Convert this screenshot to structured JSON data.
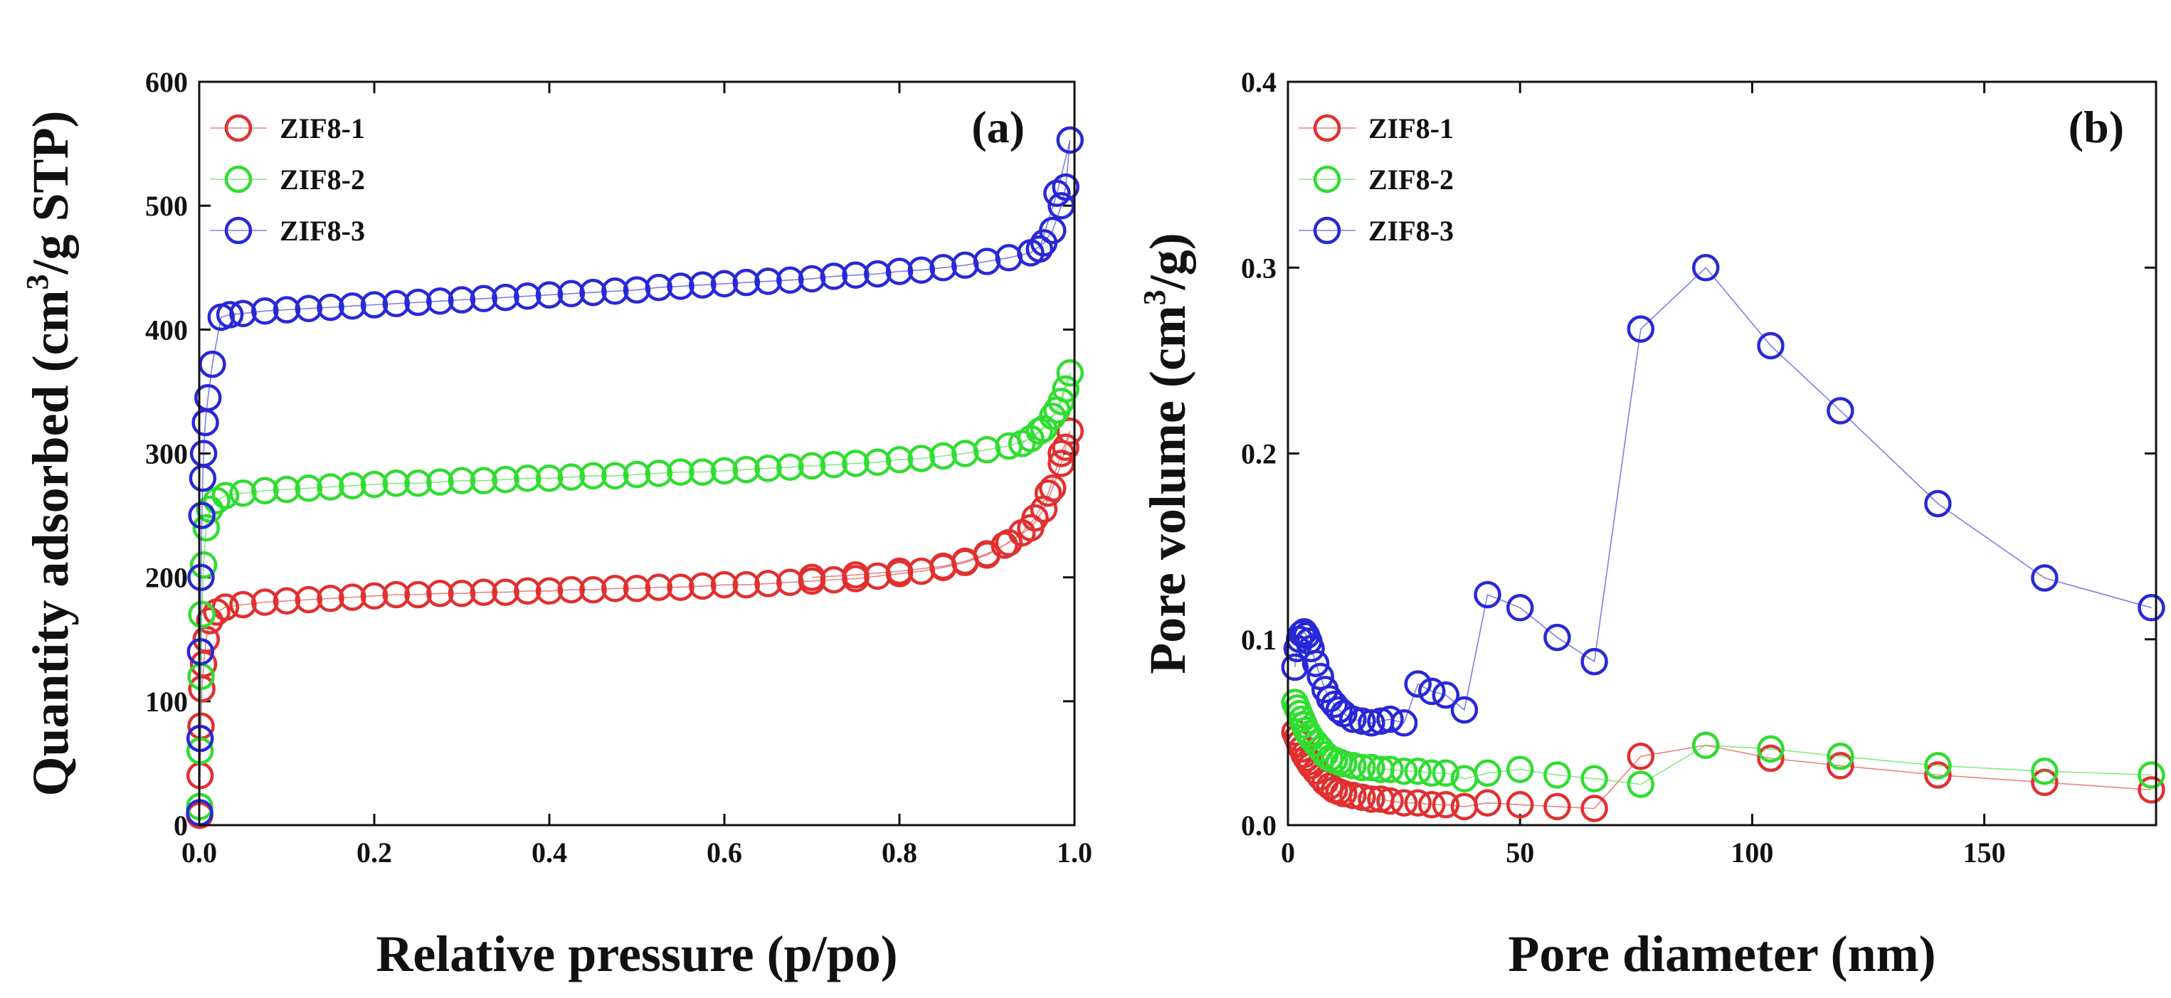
{
  "figure": {
    "panels": [
      "a",
      "b"
    ]
  },
  "chart_data": [
    {
      "id": "a",
      "type": "scatter",
      "connected": true,
      "marker": "open-circle",
      "panel_label": "(a)",
      "title": "",
      "xlabel": "Relative pressure (p/po)",
      "ylabel_main": "Quantity adsorbed (cm",
      "ylabel_sup": "3",
      "ylabel_tail": "/g STP)",
      "xlim": [
        0,
        1
      ],
      "ylim": [
        0,
        600
      ],
      "xticks": [
        0,
        0.2,
        0.4,
        0.6,
        0.8,
        1
      ],
      "xtick_labels": [
        "0.0",
        "0.2",
        "0.4",
        "0.6",
        "0.8",
        "1.0"
      ],
      "yticks": [
        0,
        100,
        200,
        300,
        400,
        500,
        600
      ],
      "ytick_labels": [
        "0",
        "100",
        "200",
        "300",
        "400",
        "500",
        "600"
      ],
      "legend_position": "top-left",
      "series": [
        {
          "name": "ZIF8-1",
          "color": "#e03030",
          "x": [
            0.0005,
            0.001,
            0.002,
            0.003,
            0.005,
            0.008,
            0.012,
            0.02,
            0.03,
            0.05,
            0.075,
            0.1,
            0.125,
            0.15,
            0.175,
            0.2,
            0.225,
            0.25,
            0.275,
            0.3,
            0.325,
            0.35,
            0.375,
            0.4,
            0.425,
            0.45,
            0.475,
            0.5,
            0.525,
            0.55,
            0.575,
            0.6,
            0.625,
            0.65,
            0.675,
            0.7,
            0.725,
            0.75,
            0.775,
            0.8,
            0.825,
            0.85,
            0.875,
            0.9,
            0.925,
            0.95,
            0.965,
            0.975,
            0.985,
            0.99,
            0.995,
            0.985,
            0.97,
            0.955,
            0.94,
            0.92,
            0.9,
            0.875,
            0.85,
            0.8,
            0.75,
            0.7
          ],
          "y": [
            8,
            40,
            80,
            110,
            130,
            150,
            165,
            172,
            176,
            178,
            180,
            181,
            182,
            183,
            184,
            185,
            186,
            186,
            187,
            187,
            188,
            188,
            189,
            189,
            190,
            190,
            191,
            191,
            192,
            192,
            193,
            194,
            194,
            195,
            196,
            197,
            198,
            199,
            201,
            203,
            205,
            208,
            212,
            218,
            228,
            240,
            255,
            272,
            292,
            305,
            318,
            300,
            268,
            248,
            236,
            226,
            219,
            213,
            209,
            205,
            202,
            200
          ]
        },
        {
          "name": "ZIF8-2",
          "color": "#30dd30",
          "x": [
            0.0005,
            0.001,
            0.002,
            0.003,
            0.005,
            0.008,
            0.012,
            0.02,
            0.03,
            0.05,
            0.075,
            0.1,
            0.125,
            0.15,
            0.175,
            0.2,
            0.225,
            0.25,
            0.275,
            0.3,
            0.325,
            0.35,
            0.375,
            0.4,
            0.425,
            0.45,
            0.475,
            0.5,
            0.525,
            0.55,
            0.575,
            0.6,
            0.625,
            0.65,
            0.675,
            0.7,
            0.725,
            0.75,
            0.775,
            0.8,
            0.825,
            0.85,
            0.875,
            0.9,
            0.925,
            0.95,
            0.965,
            0.975,
            0.985,
            0.99,
            0.995,
            0.98,
            0.96,
            0.94
          ],
          "y": [
            15,
            60,
            120,
            170,
            210,
            240,
            255,
            262,
            266,
            268,
            270,
            271,
            272,
            273,
            274,
            275,
            276,
            276,
            277,
            278,
            278,
            279,
            280,
            280,
            281,
            282,
            282,
            283,
            284,
            285,
            285,
            286,
            287,
            288,
            289,
            290,
            291,
            292,
            293,
            295,
            296,
            298,
            300,
            303,
            306,
            312,
            320,
            330,
            342,
            352,
            365,
            335,
            318,
            308
          ]
        },
        {
          "name": "ZIF8-3",
          "color": "#2828d8",
          "x": [
            0.0005,
            0.001,
            0.0015,
            0.002,
            0.003,
            0.004,
            0.005,
            0.007,
            0.01,
            0.015,
            0.025,
            0.035,
            0.05,
            0.075,
            0.1,
            0.125,
            0.15,
            0.175,
            0.2,
            0.225,
            0.25,
            0.275,
            0.3,
            0.325,
            0.35,
            0.375,
            0.4,
            0.425,
            0.45,
            0.475,
            0.5,
            0.525,
            0.55,
            0.575,
            0.6,
            0.625,
            0.65,
            0.675,
            0.7,
            0.725,
            0.75,
            0.775,
            0.8,
            0.825,
            0.85,
            0.875,
            0.9,
            0.925,
            0.95,
            0.965,
            0.975,
            0.985,
            0.99,
            0.995,
            0.98,
            0.96
          ],
          "y": [
            10,
            70,
            140,
            200,
            250,
            280,
            300,
            325,
            345,
            372,
            410,
            412,
            413,
            415,
            416,
            417,
            418,
            419,
            420,
            421,
            422,
            423,
            424,
            425,
            426,
            427,
            428,
            429,
            430,
            431,
            432,
            434,
            435,
            436,
            437,
            438,
            439,
            440,
            441,
            443,
            444,
            445,
            447,
            448,
            450,
            452,
            455,
            458,
            462,
            470,
            480,
            500,
            515,
            553,
            510,
            465
          ]
        }
      ]
    },
    {
      "id": "b",
      "type": "line",
      "marker": "open-circle",
      "panel_label": "(b)",
      "title": "",
      "xlabel": "Pore diameter (nm)",
      "ylabel_main": "Pore volume (cm",
      "ylabel_sup": "3",
      "ylabel_tail": "/g)",
      "xlim": [
        0,
        187
      ],
      "ylim": [
        0,
        0.4
      ],
      "xticks": [
        0,
        50,
        100,
        150
      ],
      "xtick_labels": [
        "0",
        "50",
        "100",
        "150"
      ],
      "yticks": [
        0,
        0.1,
        0.2,
        0.3,
        0.4
      ],
      "ytick_labels": [
        "0.0",
        "0.1",
        "0.2",
        "0.3",
        "0.4"
      ],
      "legend_position": "top-left",
      "series": [
        {
          "name": "ZIF8-1",
          "color": "#e03030",
          "x": [
            1.5,
            2,
            2.5,
            3,
            3.5,
            4,
            4.5,
            5,
            6,
            7,
            8,
            9,
            10,
            11,
            12,
            14,
            16,
            18,
            20,
            22,
            25,
            28,
            31,
            34,
            38,
            43,
            50,
            58,
            66,
            76,
            90,
            104,
            119,
            140,
            163,
            186
          ],
          "y": [
            0.05,
            0.047,
            0.044,
            0.041,
            0.038,
            0.036,
            0.034,
            0.032,
            0.029,
            0.026,
            0.023,
            0.021,
            0.019,
            0.018,
            0.017,
            0.016,
            0.015,
            0.014,
            0.014,
            0.013,
            0.012,
            0.012,
            0.011,
            0.011,
            0.01,
            0.012,
            0.011,
            0.01,
            0.009,
            0.037,
            0.043,
            0.036,
            0.032,
            0.027,
            0.023,
            0.019
          ]
        },
        {
          "name": "ZIF8-2",
          "color": "#30dd30",
          "x": [
            1.5,
            2,
            2.5,
            3,
            3.5,
            4,
            4.5,
            5,
            6,
            7,
            8,
            9,
            10,
            11,
            12,
            14,
            16,
            18,
            20,
            22,
            25,
            28,
            31,
            34,
            38,
            43,
            50,
            58,
            66,
            76,
            90,
            104,
            119,
            140,
            163,
            186
          ],
          "y": [
            0.066,
            0.063,
            0.06,
            0.057,
            0.054,
            0.051,
            0.049,
            0.047,
            0.044,
            0.041,
            0.038,
            0.036,
            0.035,
            0.034,
            0.033,
            0.032,
            0.031,
            0.031,
            0.03,
            0.03,
            0.029,
            0.029,
            0.028,
            0.028,
            0.025,
            0.028,
            0.03,
            0.027,
            0.025,
            0.022,
            0.043,
            0.041,
            0.037,
            0.032,
            0.029,
            0.027
          ]
        },
        {
          "name": "ZIF8-3",
          "color": "#2828d8",
          "x": [
            1.5,
            2,
            2.5,
            3,
            3.5,
            4,
            4.5,
            5,
            6,
            7,
            8,
            9,
            10,
            11,
            12,
            14,
            16,
            18,
            20,
            22,
            25,
            28,
            31,
            34,
            38,
            43,
            50,
            58,
            66,
            76,
            90,
            104,
            119,
            140,
            163,
            186
          ],
          "y": [
            0.085,
            0.095,
            0.1,
            0.103,
            0.104,
            0.102,
            0.099,
            0.095,
            0.087,
            0.08,
            0.073,
            0.068,
            0.065,
            0.062,
            0.06,
            0.057,
            0.056,
            0.055,
            0.056,
            0.057,
            0.055,
            0.076,
            0.072,
            0.07,
            0.062,
            0.124,
            0.117,
            0.101,
            0.088,
            0.267,
            0.3,
            0.258,
            0.223,
            0.173,
            0.133,
            0.117
          ]
        }
      ]
    }
  ]
}
